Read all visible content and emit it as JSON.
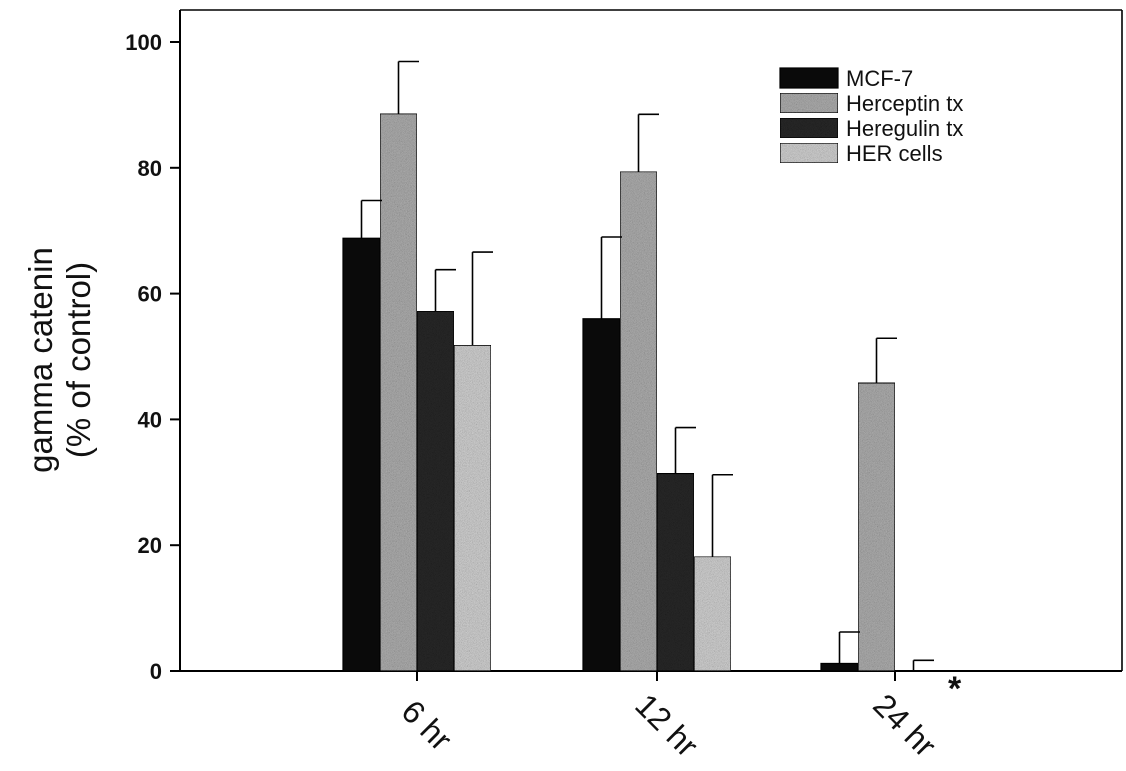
{
  "chart_data": {
    "type": "bar",
    "title": "",
    "ylabel_lines": [
      "gamma catenin",
      "(% of control)"
    ],
    "xlabel": "",
    "categories": [
      "6 hr",
      "12 hr",
      "24 hr"
    ],
    "ylim": [
      0,
      100
    ],
    "yticks": [
      0,
      20,
      40,
      60,
      80,
      100
    ],
    "legend_position": "top-right",
    "grid": false,
    "series": [
      {
        "name": "MCF-7",
        "values": [
          68.8,
          56.0,
          1.2
        ],
        "errors": [
          6.0,
          13.0,
          5.0
        ],
        "color": "#0a0a0a",
        "pattern": "solid-black"
      },
      {
        "name": "Herceptin tx",
        "values": [
          88.6,
          79.4,
          45.8
        ],
        "errors": [
          8.3,
          9.1,
          7.1
        ],
        "color": "#b4b4b4",
        "pattern": "medium-gray-stipple"
      },
      {
        "name": "Heregulin tx",
        "values": [
          57.2,
          31.4,
          0.0
        ],
        "errors": [
          6.6,
          7.3,
          1.7
        ],
        "color": "#2a2a2a",
        "pattern": "dark-stipple"
      },
      {
        "name": "HER cells",
        "values": [
          51.8,
          18.2,
          0.0
        ],
        "errors": [
          14.8,
          13.0,
          0.0
        ],
        "color": "#d8d8d8",
        "pattern": "light-gray-stipple"
      }
    ],
    "annotations": [
      {
        "text": "*",
        "category": "24 hr"
      }
    ]
  }
}
